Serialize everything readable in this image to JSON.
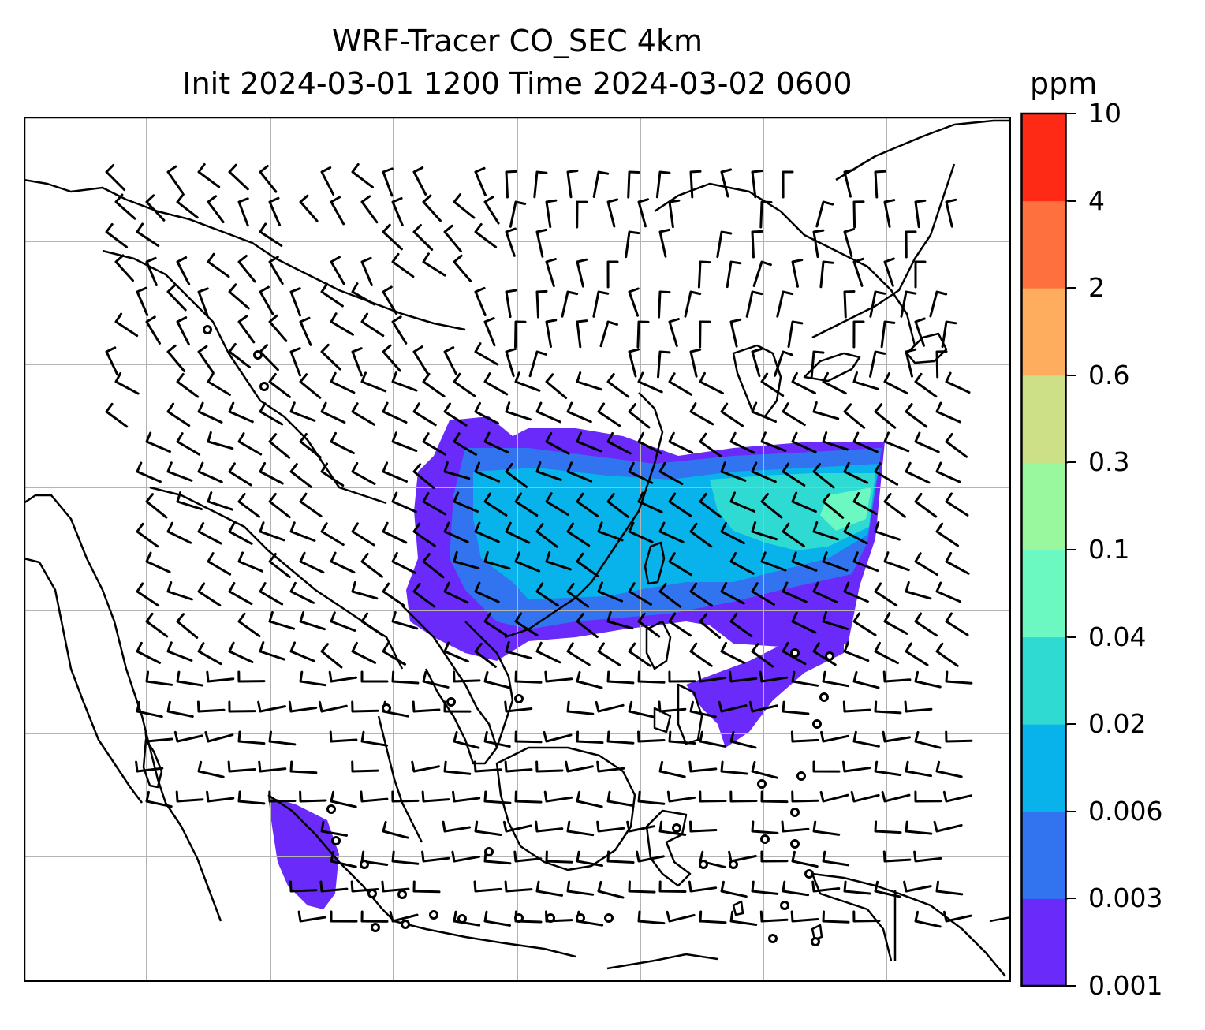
{
  "title": {
    "line1": "WRF-Tracer CO_SEC 4km",
    "line2": "Init 2024-03-01 1200 Time 2024-03-02 0600"
  },
  "colorbar": {
    "unit": "ppm",
    "ticks": [
      "0.001",
      "0.003",
      "0.006",
      "0.02",
      "0.04",
      "0.1",
      "0.3",
      "0.6",
      "2",
      "4",
      "10"
    ],
    "colors": [
      "#6a2bfa",
      "#3274ef",
      "#07b3ea",
      "#2fdad3",
      "#6bf8c1",
      "#99f89e",
      "#cde087",
      "#fead5f",
      "#fe703d",
      "#fe2a16"
    ]
  },
  "map": {
    "gridlines": true,
    "variable_colors": {
      "land_outline": "#000000",
      "gridline": "#b3b3b3"
    }
  }
}
